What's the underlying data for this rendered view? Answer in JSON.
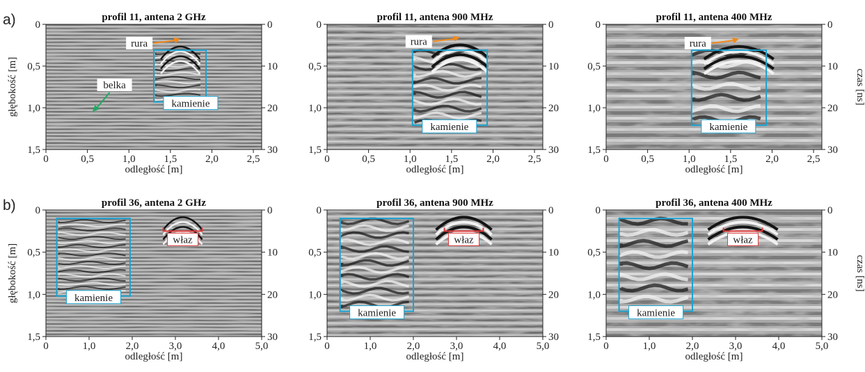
{
  "rows": [
    {
      "letter": "a)",
      "panels": [
        {
          "title": "profil 11, antena 2 GHz",
          "x_ticks": [
            "0",
            "0,5",
            "1,0",
            "1,5",
            "2,0",
            "2,5"
          ],
          "xlim": [
            0,
            2.6
          ],
          "y_ticks": [
            "0",
            "0,5",
            "1,0",
            "1,5"
          ],
          "t_ticks": [
            "0",
            "10",
            "20",
            "30"
          ],
          "stones_box": {
            "x": [
              1.3,
              1.93
            ],
            "depth": [
              0.31,
              0.93
            ]
          },
          "stones_label": "kamienie",
          "pipe": {
            "label": "rura",
            "x": 1.62,
            "depth": 0.2
          },
          "beam": {
            "label": "belka",
            "x": 0.55,
            "depth": 1.05
          }
        },
        {
          "title": "profil 11, antena 900 MHz",
          "x_ticks": [
            "0",
            "0,5",
            "1,0",
            "1,5",
            "2,0",
            "2,5"
          ],
          "xlim": [
            0,
            2.6
          ],
          "y_ticks": [
            "0",
            "0,5",
            "1,0",
            "1,5"
          ],
          "t_ticks": [
            "0",
            "10",
            "20",
            "30"
          ],
          "stones_box": {
            "x": [
              1.03,
              1.93
            ],
            "depth": [
              0.31,
              1.21
            ]
          },
          "stones_label": "kamienie",
          "pipe": {
            "label": "rura",
            "x": 1.6,
            "depth": 0.18
          }
        },
        {
          "title": "profil 11, antena 400 MHz",
          "x_ticks": [
            "0",
            "0,5",
            "1,0",
            "1,5",
            "2,0",
            "2,5"
          ],
          "xlim": [
            0,
            2.6
          ],
          "y_ticks": [
            "0",
            "0,5",
            "1,0",
            "1,5"
          ],
          "t_ticks": [
            "0",
            "10",
            "20",
            "30"
          ],
          "stones_box": {
            "x": [
              1.03,
              1.93
            ],
            "depth": [
              0.31,
              1.21
            ]
          },
          "stones_label": "kamienie",
          "pipe": {
            "label": "rura",
            "x": 1.6,
            "depth": 0.2
          }
        }
      ]
    },
    {
      "letter": "b)",
      "panels": [
        {
          "title": "profil 36, antena 2 GHz",
          "x_ticks": [
            "0",
            "1,0",
            "2,0",
            "3,0",
            "4,0",
            "5,0"
          ],
          "xlim": [
            0,
            5.0
          ],
          "y_ticks": [
            "0",
            "0,5",
            "1,0",
            "1,5"
          ],
          "t_ticks": [
            "0",
            "10",
            "20",
            "30"
          ],
          "stones_box": {
            "x": [
              0.25,
              1.95
            ],
            "depth": [
              0.1,
              1.02
            ]
          },
          "stones_label": "kamienie",
          "manhole": {
            "label": "właz",
            "x": [
              2.72,
              3.62
            ],
            "depth": 0.25
          }
        },
        {
          "title": "profil 36, antena 900 MHz",
          "x_ticks": [
            "0",
            "1,0",
            "2,0",
            "3,0",
            "4,0",
            "5,0"
          ],
          "xlim": [
            0,
            5.0
          ],
          "y_ticks": [
            "0",
            "0,5",
            "1,0",
            "1,5"
          ],
          "t_ticks": [
            "0",
            "10",
            "20",
            "30"
          ],
          "stones_box": {
            "x": [
              0.3,
              2.0
            ],
            "depth": [
              0.1,
              1.2
            ]
          },
          "stones_label": "kamienie",
          "manhole": {
            "label": "właz",
            "x": [
              2.72,
              3.62
            ],
            "depth": 0.25
          }
        },
        {
          "title": "profil 36, antena 400 MHz",
          "x_ticks": [
            "0",
            "1,0",
            "2,0",
            "3,0",
            "4,0",
            "5,0"
          ],
          "xlim": [
            0,
            5.0
          ],
          "y_ticks": [
            "0",
            "0,5",
            "1,0",
            "1,5"
          ],
          "t_ticks": [
            "0",
            "10",
            "20",
            "30"
          ],
          "stones_box": {
            "x": [
              0.3,
              2.0
            ],
            "depth": [
              0.1,
              1.2
            ]
          },
          "stones_label": "kamienie",
          "manhole": {
            "label": "właz",
            "x": [
              2.72,
              3.62
            ],
            "depth": 0.25
          }
        }
      ]
    }
  ],
  "labels": {
    "x_axis": "odległość [m]",
    "y_axis": "głębokość [m]",
    "t_axis": "czas [ns]"
  },
  "colors": {
    "stones": "#1aa3d1",
    "pipe": "#f08a1c",
    "beam": "#1faa63",
    "manhole": "#e03a3a"
  }
}
